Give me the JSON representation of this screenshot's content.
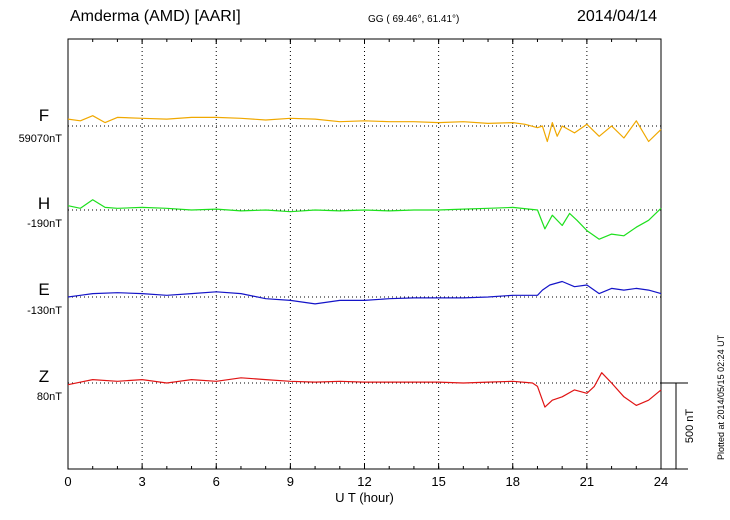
{
  "header": {
    "station": "Amderma (AMD)  [AARI]",
    "coords": "GG ( 69.46°,  61.41°)",
    "date": "2014/04/14"
  },
  "plotted_note": "Plotted at 2014/05/15 02:24 UT",
  "colors": {
    "F": "#f0a800",
    "H": "#1ee01e",
    "E": "#1414c8",
    "Z": "#e01414"
  },
  "chart_data": {
    "type": "line",
    "xlabel": "U T (hour)",
    "xlim": [
      0,
      24
    ],
    "xticks": [
      "0",
      "3",
      "6",
      "9",
      "12",
      "15",
      "18",
      "21",
      "24"
    ],
    "scale_bar": "500 nT",
    "series": [
      {
        "name": "F",
        "baseline_label": "59070nT",
        "x": [
          0,
          0.5,
          1,
          1.5,
          2,
          3,
          4,
          5,
          6,
          7,
          8,
          9,
          10,
          11,
          12,
          13,
          14,
          15,
          16,
          17,
          18,
          18.5,
          19,
          19.2,
          19.4,
          19.6,
          19.8,
          20,
          20.5,
          21,
          21.5,
          22,
          22.5,
          23,
          23.5,
          24
        ],
        "values": [
          40,
          30,
          60,
          20,
          50,
          45,
          40,
          50,
          50,
          45,
          35,
          45,
          40,
          25,
          30,
          25,
          25,
          20,
          25,
          15,
          20,
          10,
          -10,
          0,
          -90,
          20,
          -60,
          0,
          -40,
          10,
          -60,
          0,
          -70,
          30,
          -90,
          -20
        ]
      },
      {
        "name": "H",
        "baseline_label": "-190nT",
        "x": [
          0,
          0.5,
          1,
          1.5,
          2,
          3,
          4,
          5,
          6,
          7,
          8,
          9,
          10,
          11,
          12,
          13,
          14,
          15,
          16,
          17,
          18,
          19,
          19.3,
          19.6,
          20,
          20.3,
          20.6,
          21,
          21.5,
          22,
          22.5,
          23,
          23.5,
          24
        ],
        "values": [
          25,
          10,
          60,
          15,
          10,
          15,
          10,
          0,
          5,
          -5,
          0,
          -10,
          0,
          -5,
          0,
          -5,
          0,
          0,
          5,
          10,
          15,
          0,
          -110,
          -30,
          -90,
          -20,
          -60,
          -120,
          -170,
          -140,
          -150,
          -100,
          -60,
          10
        ]
      },
      {
        "name": "E",
        "baseline_label": "-130nT",
        "x": [
          0,
          0.5,
          1,
          2,
          3,
          4,
          5,
          6,
          7,
          8,
          9,
          10,
          11,
          12,
          13,
          14,
          15,
          16,
          17,
          18,
          19,
          19.2,
          19.5,
          20,
          20.5,
          21,
          21.5,
          22,
          22.5,
          23,
          23.5,
          24
        ],
        "values": [
          0,
          10,
          20,
          25,
          20,
          10,
          20,
          30,
          20,
          -10,
          -20,
          -40,
          -20,
          -20,
          -10,
          -5,
          -5,
          -5,
          0,
          10,
          10,
          40,
          70,
          90,
          60,
          70,
          20,
          50,
          40,
          50,
          40,
          20
        ]
      },
      {
        "name": "Z",
        "baseline_label": "80nT",
        "x": [
          0,
          1,
          2,
          3,
          4,
          5,
          6,
          7,
          8,
          9,
          10,
          11,
          12,
          13,
          14,
          15,
          16,
          17,
          18,
          18.8,
          19,
          19.3,
          19.6,
          20,
          20.5,
          21,
          21.3,
          21.6,
          22,
          22.5,
          23,
          23.5,
          24
        ],
        "values": [
          -10,
          20,
          10,
          20,
          0,
          20,
          10,
          30,
          20,
          10,
          5,
          10,
          5,
          5,
          5,
          5,
          0,
          5,
          10,
          0,
          -20,
          -140,
          -100,
          -80,
          -40,
          -60,
          -20,
          60,
          0,
          -80,
          -130,
          -100,
          -40
        ]
      }
    ]
  }
}
